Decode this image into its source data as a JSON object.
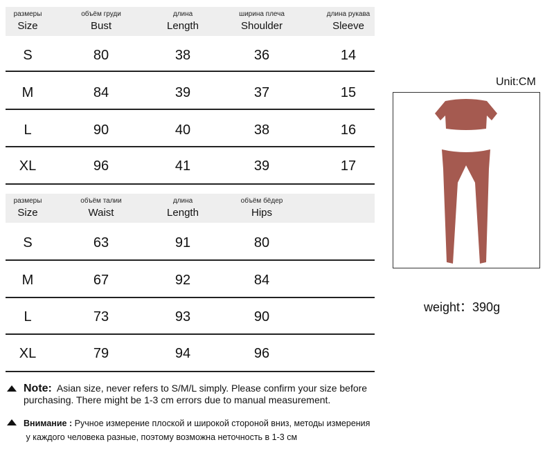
{
  "top_table": {
    "headers": [
      {
        "ru": "размеры",
        "en": "Size"
      },
      {
        "ru": "объём груди",
        "en": "Bust"
      },
      {
        "ru": "длина",
        "en": "Length"
      },
      {
        "ru": "ширина плеча",
        "en": "Shoulder"
      },
      {
        "ru": "длина рукава",
        "en": "Sleeve"
      }
    ],
    "rows": [
      [
        "S",
        "80",
        "38",
        "36",
        "14"
      ],
      [
        "M",
        "84",
        "39",
        "37",
        "15"
      ],
      [
        "L",
        "90",
        "40",
        "38",
        "16"
      ],
      [
        "XL",
        "96",
        "41",
        "39",
        "17"
      ]
    ]
  },
  "bottom_table": {
    "headers": [
      {
        "ru": "размеры",
        "en": "Size"
      },
      {
        "ru": "объём талии",
        "en": "Waist"
      },
      {
        "ru": "длина",
        "en": "Length"
      },
      {
        "ru": "объём бёдер",
        "en": "Hips"
      }
    ],
    "rows": [
      [
        "S",
        "63",
        "91",
        "80"
      ],
      [
        "M",
        "67",
        "92",
        "84"
      ],
      [
        "L",
        "73",
        "93",
        "90"
      ],
      [
        "XL",
        "79",
        "94",
        "96"
      ]
    ]
  },
  "unit": "Unit:CM",
  "weight": "weight：390g",
  "notes": {
    "en_label": "Note:",
    "en_text1": "Asian size, never refers to S/M/L simply. Please confirm your size before",
    "en_text2": "purchasing. There might be 1-3 cm errors due to manual measurement.",
    "ru_label": "Внимание :",
    "ru_text1": "Ручное измерение плоской и широкой стороной вниз, методы измерения",
    "ru_text2": "у каждого человека разные, поэтому возможна неточность в 1-3 см"
  },
  "colors": {
    "garment": "#a55a50",
    "header_bg": "#eeeeee"
  }
}
